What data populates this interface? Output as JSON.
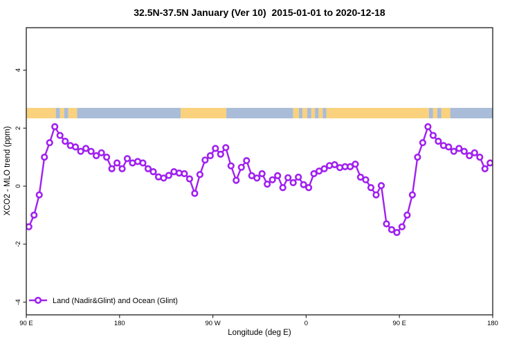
{
  "figure": {
    "background": "#ffffff",
    "box_color": "#2b2b2b"
  },
  "legend": {
    "label": "Land (Nadir&Glint) and Ocean (Glint)",
    "marker": "open-circle-on-line",
    "color": "#A020F0",
    "position": "bottom-left"
  },
  "chart_data": {
    "type": "line",
    "title": "32.5N-37.5N January (Ver 10)  2015-01-01 to 2020-12-18",
    "xlabel": "Longitude (deg E)",
    "ylabel": "XCO2 - MLO trend (ppm)",
    "xlim": [
      90,
      540
    ],
    "ylim": [
      -4.45,
      5.45
    ],
    "grid": false,
    "legend_position": "bottom-left",
    "x_ticks": [
      {
        "lon": 90,
        "label": "90 E"
      },
      {
        "lon": 180,
        "label": "180"
      },
      {
        "lon": 270,
        "label": "90 W"
      },
      {
        "lon": 360,
        "label": "0"
      },
      {
        "lon": 450,
        "label": "90 E"
      },
      {
        "lon": 540,
        "label": "180"
      }
    ],
    "y_ticks": [
      {
        "value": -4,
        "label": "-4"
      },
      {
        "value": -2,
        "label": "-2"
      },
      {
        "value": 0,
        "label": "0"
      },
      {
        "value": 2,
        "label": "2"
      },
      {
        "value": 4,
        "label": "4"
      }
    ],
    "series": [
      {
        "name": "Land (Nadir&Glint) and Ocean (Glint)",
        "color": "#A020F0",
        "marker": "open-circle",
        "x": [
          92.5,
          97.5,
          102.5,
          107.5,
          112.5,
          117.5,
          122.5,
          127.5,
          132.5,
          137.5,
          142.5,
          147.5,
          152.5,
          157.5,
          162.5,
          167.5,
          172.5,
          177.5,
          182.5,
          187.5,
          192.5,
          197.5,
          202.5,
          207.5,
          212.5,
          217.5,
          222.5,
          227.5,
          232.5,
          237.5,
          242.5,
          247.5,
          252.5,
          257.5,
          262.5,
          267.5,
          272.5,
          277.5,
          282.5,
          287.5,
          292.5,
          297.5,
          302.5,
          307.5,
          312.5,
          317.5,
          322.5,
          327.5,
          332.5,
          337.5,
          342.5,
          347.5,
          352.5,
          357.5,
          362.5,
          367.5,
          372.5,
          377.5,
          382.5,
          387.5,
          392.5,
          397.5,
          402.5,
          407.5,
          412.5,
          417.5,
          422.5,
          427.5,
          432.5,
          437.5,
          442.5,
          447.5,
          452.5,
          457.5,
          462.5,
          467.5,
          472.5,
          477.5,
          482.5,
          487.5,
          492.5,
          497.5,
          502.5,
          507.5,
          512.5,
          517.5,
          522.5,
          527.5,
          532.5,
          537.5
        ],
        "values": [
          -1.4,
          -1.0,
          -0.3,
          1.0,
          1.5,
          2.05,
          1.75,
          1.55,
          1.4,
          1.35,
          1.2,
          1.3,
          1.2,
          1.05,
          1.15,
          1.0,
          0.6,
          0.8,
          0.6,
          0.95,
          0.8,
          0.85,
          0.8,
          0.6,
          0.5,
          0.32,
          0.28,
          0.37,
          0.5,
          0.45,
          0.43,
          0.25,
          -0.25,
          0.4,
          0.9,
          1.05,
          1.3,
          1.1,
          1.33,
          0.7,
          0.2,
          0.65,
          0.88,
          0.36,
          0.28,
          0.43,
          0.07,
          0.22,
          0.36,
          -0.05,
          0.29,
          0.12,
          0.31,
          0.05,
          -0.05,
          0.43,
          0.52,
          0.6,
          0.71,
          0.74,
          0.64,
          0.67,
          0.67,
          0.76,
          0.31,
          0.22,
          -0.05,
          -0.3,
          0.02,
          -1.3,
          -1.5,
          -1.6,
          -1.4,
          -1.0,
          -0.3,
          1.0,
          1.5,
          2.05,
          1.75,
          1.55,
          1.4,
          1.35,
          1.2,
          1.3,
          1.2,
          1.05,
          1.15,
          1.0,
          0.6,
          0.8
        ],
        "lead_in_vertex": {
          "lon": 90,
          "value": -1.3
        }
      }
    ],
    "map_band": {
      "description": "land/ocean strip across 32.5N-37.5N",
      "ppm_top": 2.7,
      "ppm_bottom": 2.34,
      "land_color": "#FAD17C",
      "ocean_color": "#A9BCD8",
      "segments": [
        {
          "from": 90,
          "to": 118.5,
          "surface": "land"
        },
        {
          "from": 118.5,
          "to": 122.5,
          "surface": "ocean"
        },
        {
          "from": 122.5,
          "to": 126.5,
          "surface": "land"
        },
        {
          "from": 126.5,
          "to": 130.5,
          "surface": "ocean"
        },
        {
          "from": 130.5,
          "to": 139,
          "surface": "land"
        },
        {
          "from": 139,
          "to": 239,
          "surface": "ocean"
        },
        {
          "from": 239,
          "to": 283,
          "surface": "land"
        },
        {
          "from": 283,
          "to": 347.5,
          "surface": "ocean"
        },
        {
          "from": 347.5,
          "to": 353,
          "surface": "land"
        },
        {
          "from": 353,
          "to": 356.5,
          "surface": "ocean"
        },
        {
          "from": 356.5,
          "to": 361,
          "surface": "land"
        },
        {
          "from": 361,
          "to": 365,
          "surface": "ocean"
        },
        {
          "from": 365,
          "to": 368.5,
          "surface": "land"
        },
        {
          "from": 368.5,
          "to": 372,
          "surface": "ocean"
        },
        {
          "from": 372,
          "to": 376,
          "surface": "land"
        },
        {
          "from": 376,
          "to": 379.5,
          "surface": "ocean"
        },
        {
          "from": 379.5,
          "to": 478.5,
          "surface": "land"
        },
        {
          "from": 478.5,
          "to": 482.5,
          "surface": "ocean"
        },
        {
          "from": 482.5,
          "to": 486.5,
          "surface": "land"
        },
        {
          "from": 486.5,
          "to": 490.5,
          "surface": "ocean"
        },
        {
          "from": 490.5,
          "to": 499,
          "surface": "land"
        },
        {
          "from": 499,
          "to": 540,
          "surface": "ocean"
        }
      ]
    }
  }
}
